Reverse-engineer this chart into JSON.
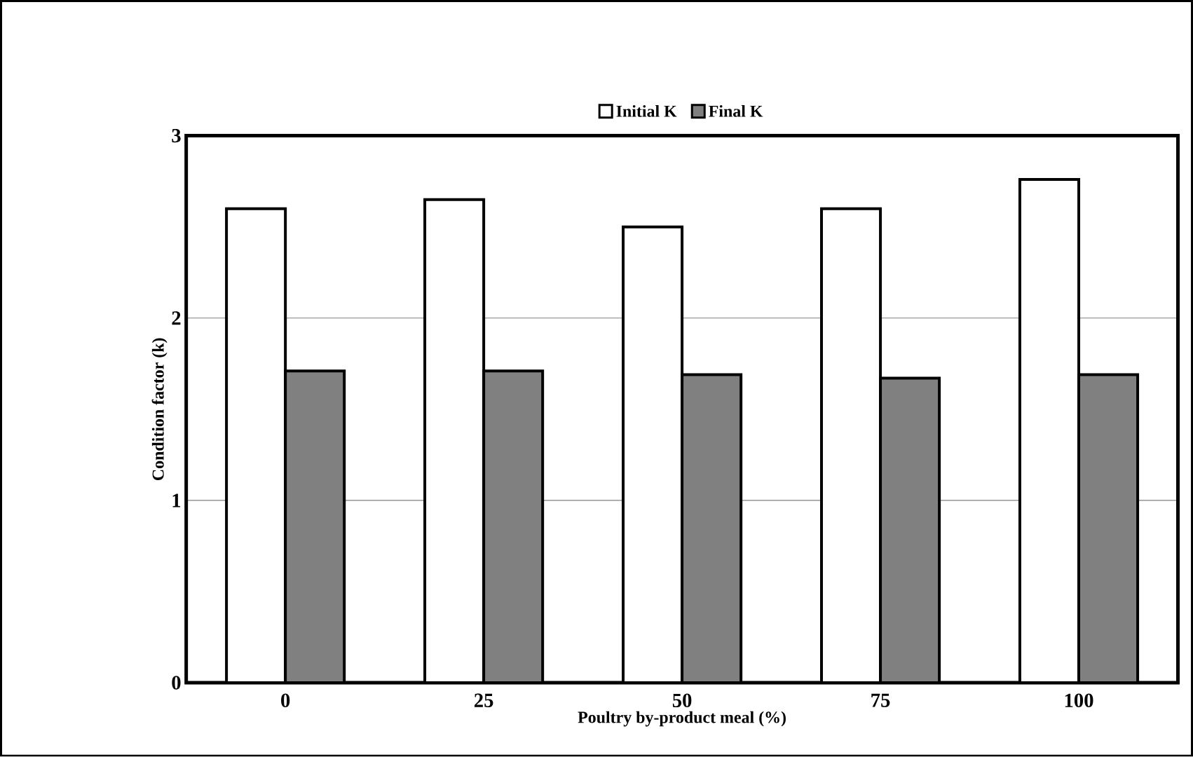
{
  "chart_data": {
    "type": "bar",
    "categories": [
      "0",
      "25",
      "50",
      "75",
      "100"
    ],
    "series": [
      {
        "name": "Initial K",
        "color": "#ffffff",
        "values": [
          2.6,
          2.65,
          2.5,
          2.6,
          2.76
        ]
      },
      {
        "name": "Final K",
        "color": "#808080",
        "values": [
          1.71,
          1.71,
          1.69,
          1.67,
          1.69
        ]
      }
    ],
    "xlabel": "Poultry by-product meal (%)",
    "ylabel": "Condition  factor (k)",
    "ylim": [
      0,
      3
    ],
    "yticks": [
      0,
      1,
      2,
      3
    ],
    "grid": "y",
    "legend": "top"
  }
}
